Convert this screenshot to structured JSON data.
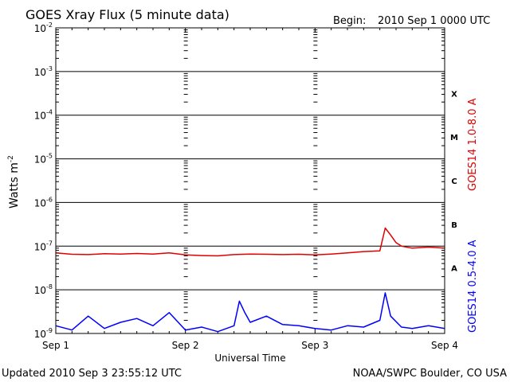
{
  "header": {
    "title": "GOES Xray Flux (5 minute data)",
    "begin_label": "Begin:",
    "begin_value": "2010 Sep 1 0000 UTC"
  },
  "footer": {
    "updated": "Updated 2010 Sep  3 23:55:12 UTC",
    "source": "NOAA/SWPC Boulder, CO USA"
  },
  "chart_data": {
    "type": "line",
    "title": "GOES Xray Flux (5 minute data)",
    "xlabel": "Universal Time",
    "ylabel_base": "Watts m",
    "ylabel_exp": "-2",
    "y_scale": "log",
    "ylim": [
      1e-09,
      0.01
    ],
    "xlim": [
      "2010-09-01 00:00",
      "2010-09-04 00:00"
    ],
    "y_ticks": [
      {
        "base": "10",
        "exp": "-2"
      },
      {
        "base": "10",
        "exp": "-3"
      },
      {
        "base": "10",
        "exp": "-4"
      },
      {
        "base": "10",
        "exp": "-5"
      },
      {
        "base": "10",
        "exp": "-6"
      },
      {
        "base": "10",
        "exp": "-7"
      },
      {
        "base": "10",
        "exp": "-8"
      },
      {
        "base": "10",
        "exp": "-9"
      }
    ],
    "x_ticks": [
      "Sep 1",
      "Sep 2",
      "Sep 3",
      "Sep 4"
    ],
    "flare_classes": [
      "X",
      "M",
      "C",
      "B",
      "A"
    ],
    "grid": "horizontal at each decade, dashed vertical at day boundaries",
    "series": [
      {
        "name": "GOES14 1.0-8.0 A",
        "color": "#e00000",
        "x": [
          "2010-09-01 00:00",
          "2010-09-01 03:00",
          "2010-09-01 06:00",
          "2010-09-01 09:00",
          "2010-09-01 12:00",
          "2010-09-01 15:00",
          "2010-09-01 18:00",
          "2010-09-01 21:00",
          "2010-09-02 00:00",
          "2010-09-02 03:00",
          "2010-09-02 06:00",
          "2010-09-02 09:00",
          "2010-09-02 12:00",
          "2010-09-02 15:00",
          "2010-09-02 18:00",
          "2010-09-02 21:00",
          "2010-09-03 00:00",
          "2010-09-03 03:00",
          "2010-09-03 06:00",
          "2010-09-03 09:00",
          "2010-09-03 12:00",
          "2010-09-03 13:00",
          "2010-09-03 14:00",
          "2010-09-03 15:00",
          "2010-09-03 16:00",
          "2010-09-03 18:00",
          "2010-09-03 21:00",
          "2010-09-04 00:00"
        ],
        "values": [
          7e-08,
          6.5e-08,
          6.4e-08,
          6.7e-08,
          6.6e-08,
          6.8e-08,
          6.6e-08,
          7e-08,
          6.3e-08,
          6.1e-08,
          6e-08,
          6.4e-08,
          6.6e-08,
          6.5e-08,
          6.4e-08,
          6.5e-08,
          6.3e-08,
          6.6e-08,
          7e-08,
          7.5e-08,
          7.8e-08,
          2.6e-07,
          1.8e-07,
          1.2e-07,
          1e-07,
          9e-08,
          9.5e-08,
          9e-08
        ]
      },
      {
        "name": "GOES14 0.5-4.0 A",
        "color": "#0000ff",
        "x": [
          "2010-09-01 00:00",
          "2010-09-01 03:00",
          "2010-09-01 06:00",
          "2010-09-01 09:00",
          "2010-09-01 12:00",
          "2010-09-01 15:00",
          "2010-09-01 18:00",
          "2010-09-01 21:00",
          "2010-09-02 00:00",
          "2010-09-02 03:00",
          "2010-09-02 06:00",
          "2010-09-02 09:00",
          "2010-09-02 10:00",
          "2010-09-02 11:00",
          "2010-09-02 12:00",
          "2010-09-02 15:00",
          "2010-09-02 18:00",
          "2010-09-02 21:00",
          "2010-09-03 00:00",
          "2010-09-03 03:00",
          "2010-09-03 06:00",
          "2010-09-03 09:00",
          "2010-09-03 12:00",
          "2010-09-03 13:00",
          "2010-09-03 14:00",
          "2010-09-03 16:00",
          "2010-09-03 18:00",
          "2010-09-03 21:00",
          "2010-09-04 00:00"
        ],
        "values": [
          1.5e-09,
          1.2e-09,
          2.5e-09,
          1.3e-09,
          1.8e-09,
          2.2e-09,
          1.5e-09,
          3e-09,
          1.2e-09,
          1.4e-09,
          1.1e-09,
          1.5e-09,
          5.5e-09,
          3e-09,
          1.8e-09,
          2.5e-09,
          1.6e-09,
          1.5e-09,
          1.3e-09,
          1.2e-09,
          1.5e-09,
          1.4e-09,
          2e-09,
          8.5e-09,
          2.5e-09,
          1.4e-09,
          1.3e-09,
          1.5e-09,
          1.3e-09
        ]
      }
    ]
  }
}
